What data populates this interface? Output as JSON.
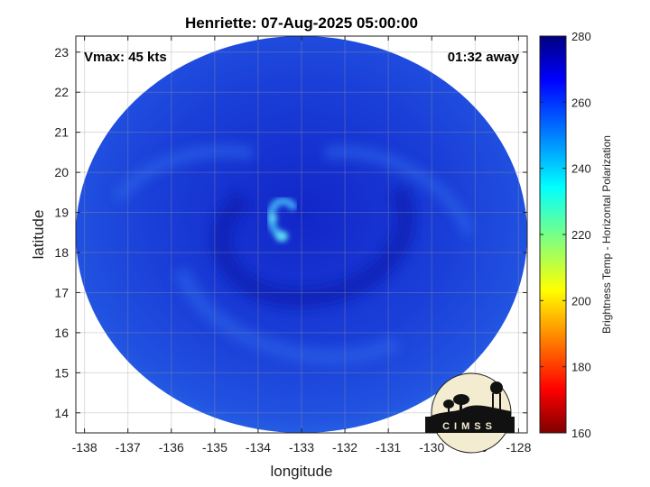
{
  "chart_data": {
    "type": "heatmap",
    "title": "Henriette: 07-Aug-2025 05:00:00",
    "xlabel": "longitude",
    "ylabel": "latitude",
    "xlim": [
      -138.2,
      -127.8
    ],
    "ylim": [
      13.5,
      23.4
    ],
    "xticks": [
      -138,
      -137,
      -136,
      -135,
      -134,
      -133,
      -132,
      -131,
      -130,
      -129,
      -128
    ],
    "yticks": [
      14,
      15,
      16,
      17,
      18,
      19,
      20,
      21,
      22,
      23
    ],
    "grid": true,
    "annotations": {
      "vmax": "Vmax: 45 kts",
      "time_offset": "01:32 away"
    },
    "swath": {
      "center_lon": -133.0,
      "center_lat": 18.45,
      "radius_lon": 5.2,
      "radius_lat": 4.95
    },
    "warm_core": {
      "lon": -133.4,
      "lat": 18.4
    },
    "colorbar": {
      "label": "Brightness Temp - Horizontal Polarization",
      "min": 160,
      "max": 280,
      "ticks": [
        160,
        180,
        200,
        220,
        240,
        260,
        280
      ]
    },
    "logo_text": "CIMSS"
  }
}
